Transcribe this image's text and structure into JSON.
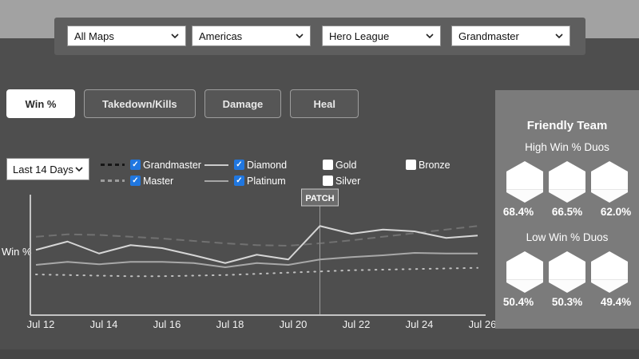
{
  "theme": {
    "background": "#4e4e4e",
    "top_band": "#a2a2a2",
    "panel": "#5e5e5e",
    "sidebar_panel": "#7b7b7b",
    "checkbox_checked": "#2077e0",
    "active_tab_bg": "#ffffff"
  },
  "filters": {
    "map": "All Maps",
    "region": "Americas",
    "game_mode": "Hero League",
    "rank": "Grandmaster"
  },
  "tabs": [
    {
      "label": "Win %",
      "active": true
    },
    {
      "label": "Takedown/Kills",
      "active": false
    },
    {
      "label": "Damage",
      "active": false
    },
    {
      "label": "Heal",
      "active": false
    }
  ],
  "time_range": "Last 14 Days",
  "legend": [
    {
      "label": "Grandmaster",
      "checked": true
    },
    {
      "label": "Master",
      "checked": true
    },
    {
      "label": "Diamond",
      "checked": true
    },
    {
      "label": "Platinum",
      "checked": true
    },
    {
      "label": "Gold",
      "checked": false
    },
    {
      "label": "Silver",
      "checked": false
    },
    {
      "label": "Bronze",
      "checked": false
    }
  ],
  "chart_data": {
    "type": "line",
    "title": "",
    "xlabel": "",
    "ylabel": "Win %",
    "ylim": [
      40,
      60
    ],
    "grid": false,
    "legend_position": "top",
    "x": [
      "Jul 12",
      "Jul 13",
      "Jul 14",
      "Jul 15",
      "Jul 16",
      "Jul 17",
      "Jul 18",
      "Jul 19",
      "Jul 20",
      "Jul 21",
      "Jul 22",
      "Jul 23",
      "Jul 24",
      "Jul 25",
      "Jul 26"
    ],
    "x_tick_labels": [
      "Jul 12",
      "Jul 14",
      "Jul 16",
      "Jul 18",
      "Jul 20",
      "Jul 22",
      "Jul 24",
      "Jul 26"
    ],
    "annotation": {
      "label": "PATCH",
      "x": "Jul 21",
      "x_index": 9
    },
    "series": [
      {
        "name": "Master",
        "style": "dashed-faint",
        "color": "#7d7d7d",
        "values": [
          53.1,
          53.5,
          53.4,
          53.1,
          52.8,
          52.4,
          52.0,
          51.7,
          51.6,
          52.0,
          52.5,
          53.1,
          53.7,
          54.3,
          54.9
        ]
      },
      {
        "name": "Grandmaster",
        "style": "dotted",
        "color": "#c0c0c0",
        "values": [
          46.8,
          46.7,
          46.6,
          46.5,
          46.5,
          46.6,
          46.7,
          46.9,
          47.1,
          47.3,
          47.5,
          47.6,
          47.7,
          47.8,
          47.9
        ]
      },
      {
        "name": "Platinum",
        "style": "solid",
        "color": "#a8a8a8",
        "values": [
          48.4,
          48.9,
          48.5,
          48.9,
          48.9,
          48.7,
          48.0,
          48.7,
          48.4,
          49.3,
          49.7,
          50.0,
          50.4,
          50.3,
          50.3
        ]
      },
      {
        "name": "Diamond",
        "style": "solid",
        "color": "#d6d6d6",
        "values": [
          50.9,
          52.3,
          50.3,
          51.7,
          51.2,
          50.0,
          48.7,
          50.1,
          49.3,
          54.9,
          53.6,
          54.3,
          54.0,
          52.9,
          53.3
        ]
      }
    ]
  },
  "sidebar": {
    "title": "Friendly Team",
    "high_section": {
      "label": "High Win % Duos",
      "values": [
        "68.4%",
        "66.5%",
        "62.0%"
      ]
    },
    "low_section": {
      "label": "Low Win % Duos",
      "values": [
        "50.4%",
        "50.3%",
        "49.4%"
      ]
    }
  }
}
